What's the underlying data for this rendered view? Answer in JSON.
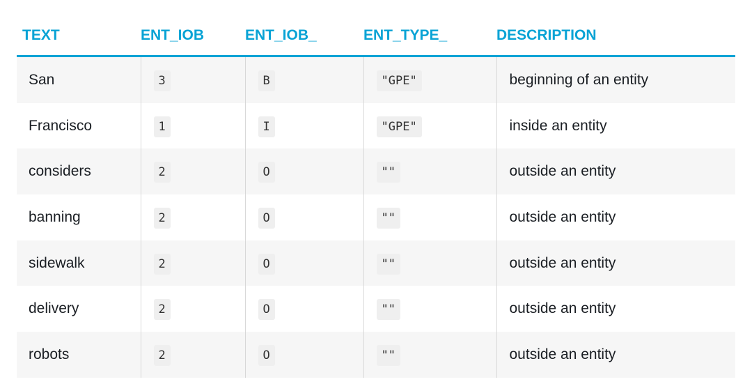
{
  "columns": [
    "TEXT",
    "ENT_IOB",
    "ENT_IOB_",
    "ENT_TYPE_",
    "DESCRIPTION"
  ],
  "rows": [
    {
      "text": "San",
      "ent_iob": "3",
      "ent_iob_": "B",
      "ent_type_": "\"GPE\"",
      "description": "beginning of an entity"
    },
    {
      "text": "Francisco",
      "ent_iob": "1",
      "ent_iob_": "I",
      "ent_type_": "\"GPE\"",
      "description": "inside an entity"
    },
    {
      "text": "considers",
      "ent_iob": "2",
      "ent_iob_": "O",
      "ent_type_": "\"\"",
      "description": "outside an entity"
    },
    {
      "text": "banning",
      "ent_iob": "2",
      "ent_iob_": "O",
      "ent_type_": "\"\"",
      "description": "outside an entity"
    },
    {
      "text": "sidewalk",
      "ent_iob": "2",
      "ent_iob_": "O",
      "ent_type_": "\"\"",
      "description": "outside an entity"
    },
    {
      "text": "delivery",
      "ent_iob": "2",
      "ent_iob_": "O",
      "ent_type_": "\"\"",
      "description": "outside an entity"
    },
    {
      "text": "robots",
      "ent_iob": "2",
      "ent_iob_": "O",
      "ent_type_": "\"\"",
      "description": "outside an entity"
    }
  ],
  "colors": {
    "header": "#09a3d5",
    "stripe": "#f6f6f6"
  }
}
